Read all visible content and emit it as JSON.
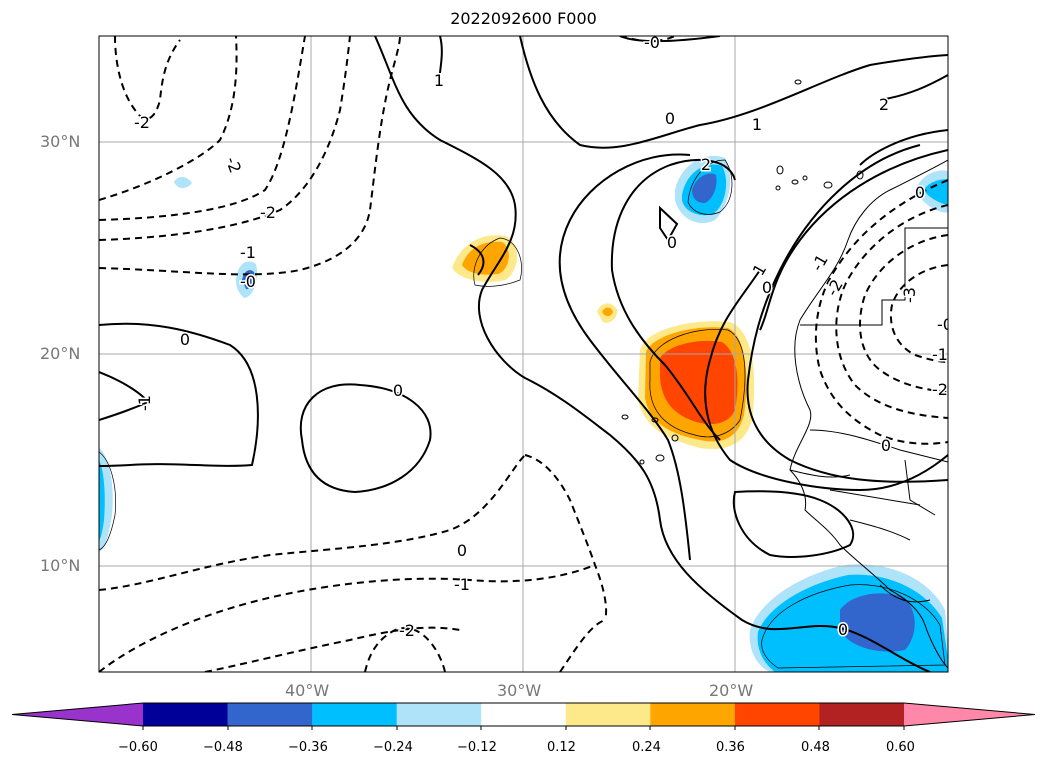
{
  "title": "2022092600 F000",
  "map": {
    "lat_labels": [
      {
        "text": "30°N",
        "lat": 30
      },
      {
        "text": "20°N",
        "lat": 20
      },
      {
        "text": "10°N",
        "lat": 10
      }
    ],
    "lon_labels": [
      {
        "text": "40°W",
        "lon": -40
      },
      {
        "text": "30°W",
        "lon": -30
      },
      {
        "text": "20°W",
        "lon": -20
      }
    ],
    "contour_labels": [
      "-2",
      "-2",
      "-2",
      "-1",
      "-1",
      "-0",
      "0",
      "0",
      "0",
      "0",
      "-0",
      "0",
      "0",
      "1",
      "1",
      "1",
      "-1",
      "2",
      "-2",
      "2",
      "0",
      "-1",
      "-2",
      "-3",
      "0",
      "0",
      "-0",
      "-1",
      "-2"
    ]
  },
  "colorbar": {
    "colors": [
      "#9933cc",
      "#000099",
      "#3366cc",
      "#00bfff",
      "#aee3fa",
      "#ffffff",
      "#fde98a",
      "#ffa500",
      "#ff4500",
      "#b22222",
      "#ff88aa",
      "#ff88aa"
    ],
    "ticks": [
      "−0.60",
      "−0.48",
      "−0.36",
      "−0.24",
      "−0.12",
      "0.12",
      "0.24",
      "0.36",
      "0.48",
      "0.60"
    ]
  }
}
